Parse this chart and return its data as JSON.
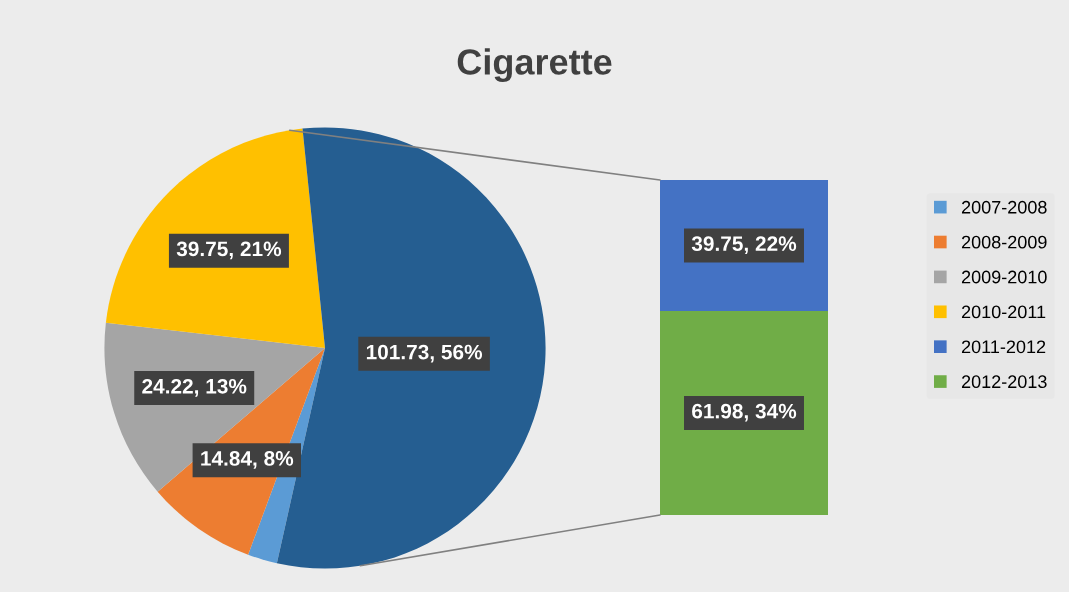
{
  "chart_data": [
    {
      "type": "pie",
      "title": "Cigarette",
      "categories": [
        "2007-2008",
        "2008-2009",
        "2009-2010",
        "2010-2011",
        null
      ],
      "values": [
        4,
        14.84,
        24.22,
        39.75,
        101.73
      ],
      "colors": [
        "#5b9bd5",
        "#ed7d31",
        "#a5a5a5",
        "#ffc000",
        "#255e91"
      ],
      "value_labels": [
        null,
        "14.84, 8%",
        "24.22, 13%",
        "39.75, 21%",
        "101.73, 56%"
      ],
      "legend": "right"
    },
    {
      "type": "bar",
      "stacked": true,
      "categories": [
        null
      ],
      "series": [
        {
          "name": "2012-2013",
          "color": "#70ad47",
          "values": [
            61.98
          ],
          "value_labels": [
            "61.98, 34%"
          ]
        },
        {
          "name": "2011-2012",
          "color": "#4472c4",
          "values": [
            39.75
          ],
          "value_labels": [
            "39.75, 22%"
          ]
        }
      ],
      "legend": "right"
    }
  ]
}
